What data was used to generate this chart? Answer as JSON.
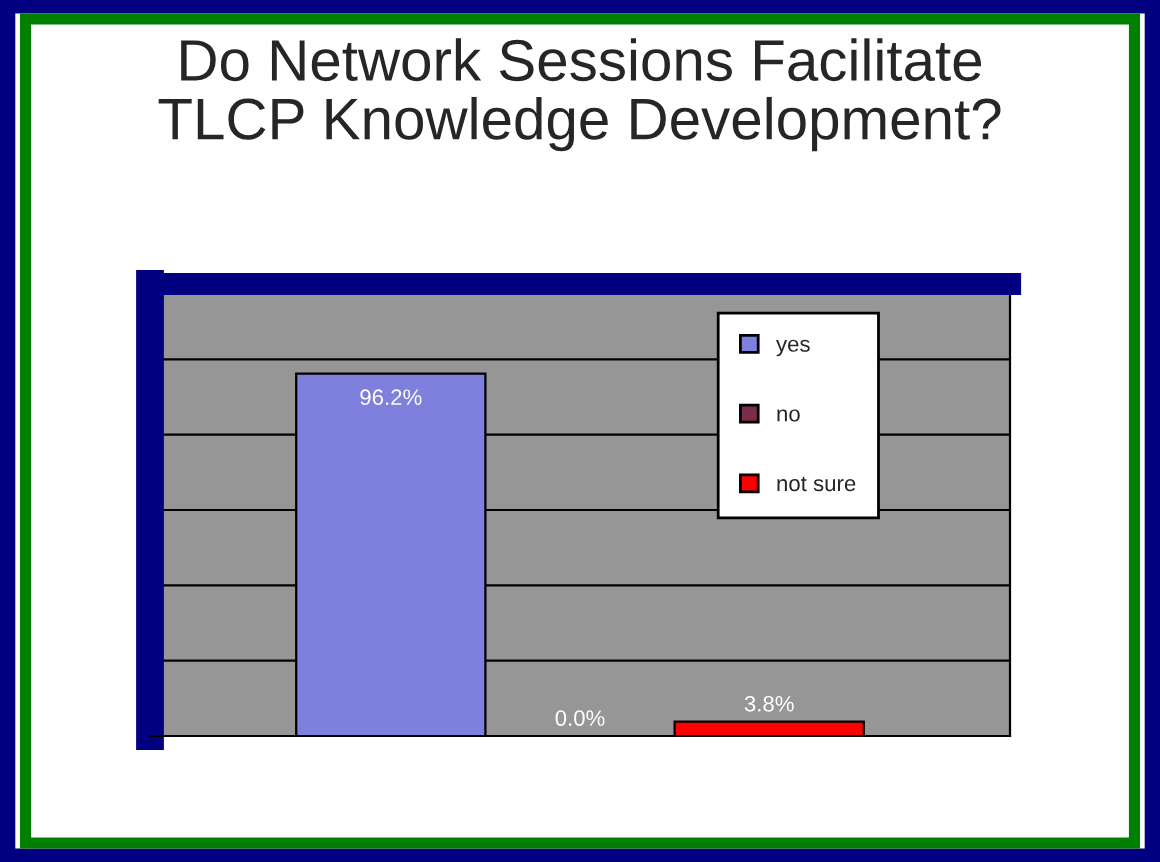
{
  "chart_data": {
    "type": "bar",
    "title": "Do Network Sessions Facilitate\nTLCP Knowledge Development?",
    "categories": [
      null
    ],
    "series": [
      {
        "name": "yes",
        "color": "#7f7fdd",
        "values": [
          96.2
        ],
        "value_labels": [
          "96.2%"
        ]
      },
      {
        "name": "no",
        "color": "#7b2c4c",
        "values": [
          0.0
        ],
        "value_labels": [
          "0.0%"
        ]
      },
      {
        "name": "not sure",
        "color": "#ff0000",
        "values": [
          3.8
        ],
        "value_labels": [
          "3.8%"
        ]
      }
    ],
    "ylim": [
      0,
      120
    ],
    "yticks": [
      {
        "value": 0,
        "label": null
      },
      {
        "value": 20,
        "label": null
      },
      {
        "value": 40,
        "label": null
      },
      {
        "value": 60,
        "label": null
      },
      {
        "value": 80,
        "label": null
      },
      {
        "value": 100,
        "label": null
      },
      {
        "value": 120,
        "label": null
      }
    ],
    "grid": "y",
    "legend": "top right"
  }
}
